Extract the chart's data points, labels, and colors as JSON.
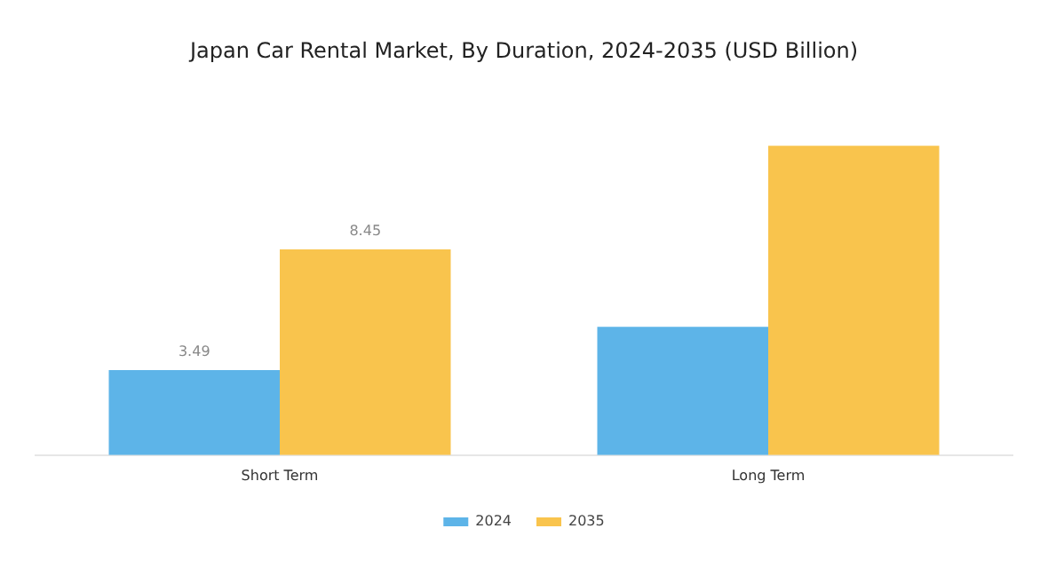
{
  "chart_data": {
    "type": "bar",
    "title": "Japan Car Rental Market, By Duration, 2024-2035 (USD Billion)",
    "categories": [
      "Short Term",
      "Long Term"
    ],
    "series": [
      {
        "name": "2024",
        "color": "#5db4e8",
        "values": [
          3.49,
          5.27
        ],
        "value_labels": [
          "3.49",
          null
        ]
      },
      {
        "name": "2035",
        "color": "#f9c44d",
        "values": [
          8.45,
          12.71
        ],
        "value_labels": [
          "8.45",
          null
        ]
      }
    ],
    "legend": "bottom",
    "grid": false
  }
}
